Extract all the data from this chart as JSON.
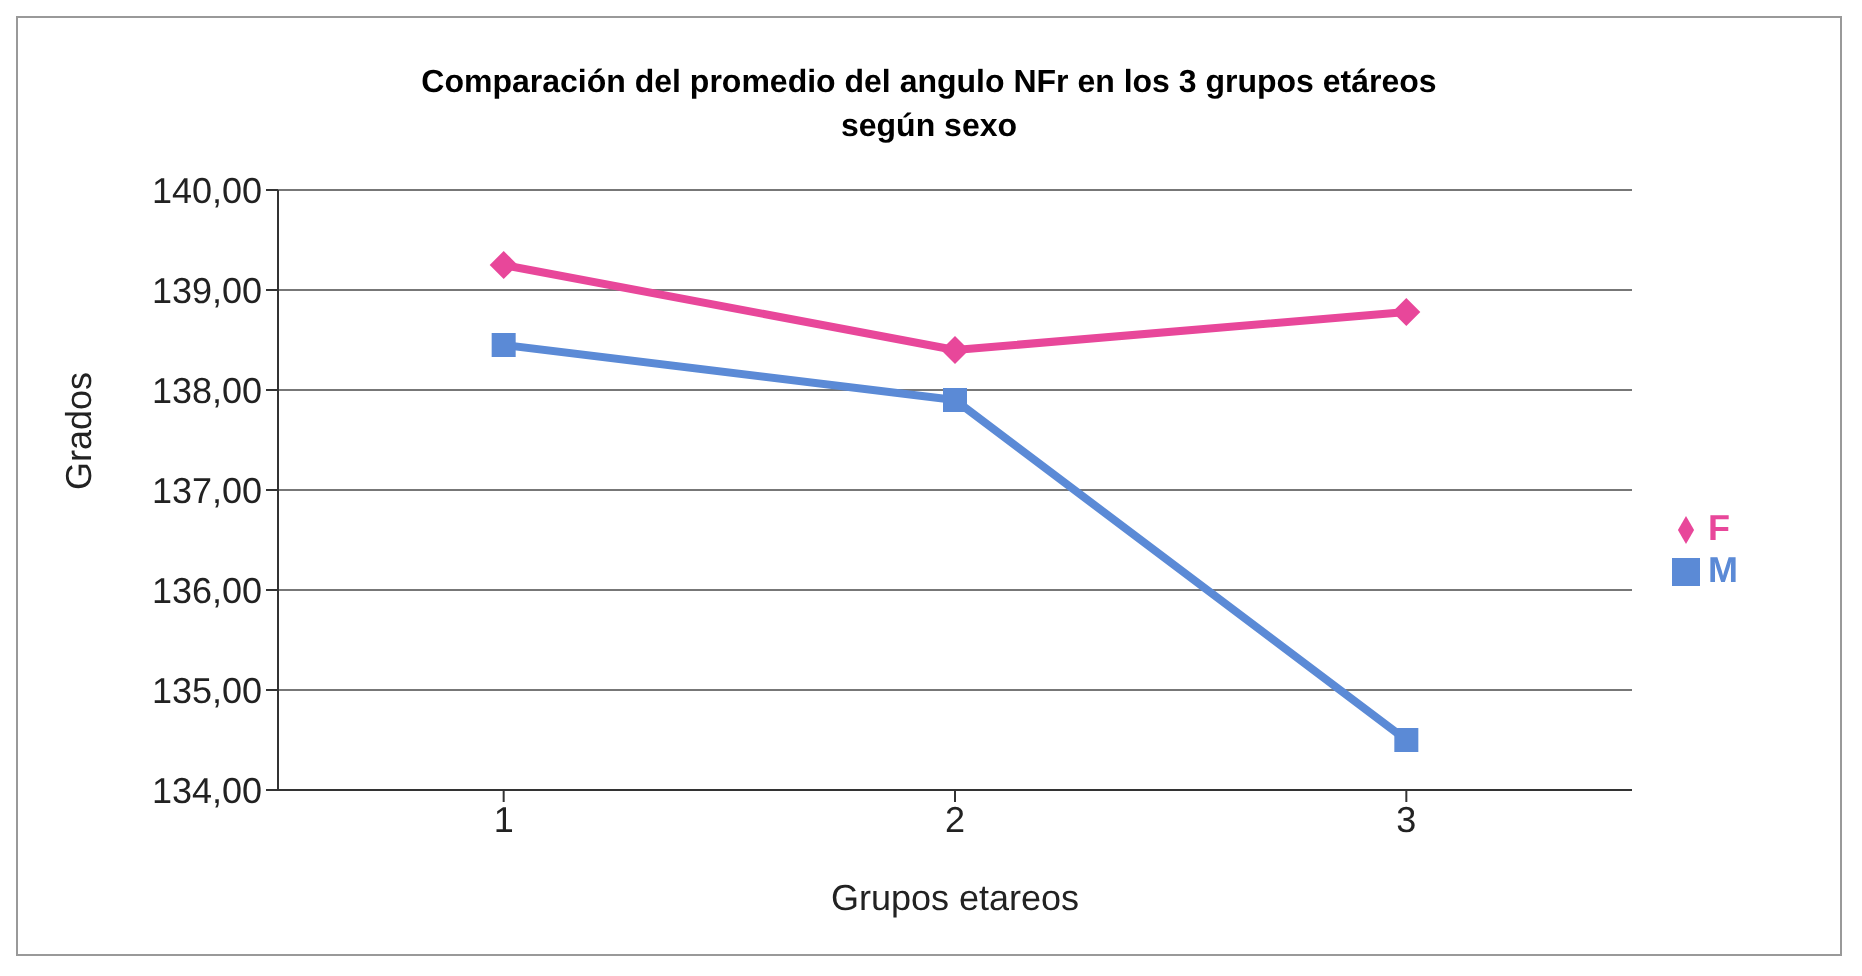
{
  "chart_data": {
    "type": "line",
    "title": "Comparación del promedio del angulo NFr en los 3 grupos etáreos según sexo",
    "xlabel": "Grupos etareos",
    "ylabel": "Grados",
    "categories": [
      "1",
      "2",
      "3"
    ],
    "series": [
      {
        "name": "F",
        "color": "#e8479a",
        "marker": "diamond",
        "values": [
          139.25,
          138.4,
          138.78
        ]
      },
      {
        "name": "M",
        "color": "#5b8ad6",
        "marker": "square",
        "values": [
          138.45,
          137.9,
          134.5
        ]
      }
    ],
    "ylim": [
      134,
      140
    ],
    "yticks": [
      {
        "value": 134,
        "label": "134,00"
      },
      {
        "value": 135,
        "label": "135,00"
      },
      {
        "value": 136,
        "label": "136,00"
      },
      {
        "value": 137,
        "label": "137,00"
      },
      {
        "value": 138,
        "label": "138,00"
      },
      {
        "value": 139,
        "label": "139,00"
      },
      {
        "value": 140,
        "label": "140,00"
      }
    ],
    "grid": "y",
    "legend": "right"
  }
}
